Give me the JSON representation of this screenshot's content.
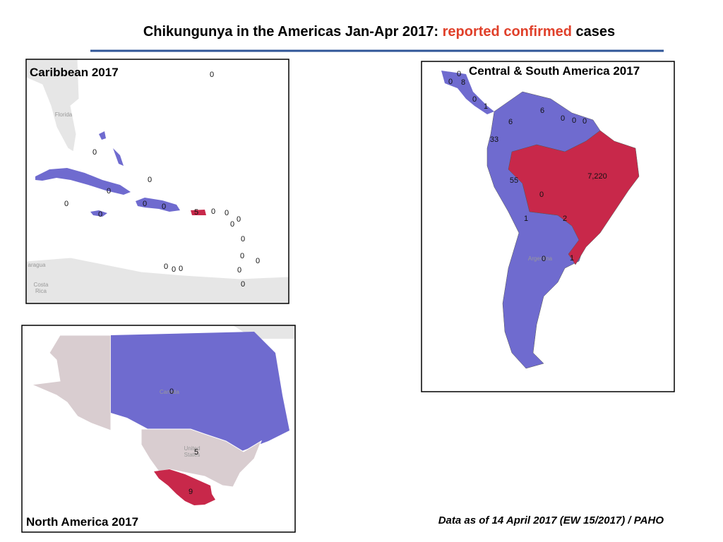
{
  "title": {
    "before": "Chikungunya in the Americas Jan-Apr 2017: ",
    "highlight": "reported confirmed",
    "after": " cases"
  },
  "maps": [
    {
      "title": "Caribbean 2017",
      "labels": [
        "0",
        "0",
        "0",
        "0",
        "0",
        "0",
        "0",
        "0",
        "5",
        "0",
        "0",
        "0",
        "0",
        "0",
        "0",
        "0",
        "0",
        "0",
        "0",
        "0",
        "0"
      ],
      "place_names": [
        "Florida",
        "aragua",
        "Costa",
        "Rica"
      ]
    },
    {
      "title": "Central & South America 2017",
      "labels": [
        "0",
        "0",
        "8",
        "0",
        "1",
        "6",
        "0",
        "0",
        "0",
        "6",
        "33",
        "7,220",
        "55",
        "0",
        "1",
        "2",
        "0",
        "1"
      ],
      "place_names": [
        "Argentina"
      ]
    },
    {
      "title": "North America 2017",
      "labels": [
        "0",
        "5",
        "9"
      ],
      "place_names": [
        "Canada",
        "United",
        "States"
      ]
    }
  ],
  "footnote": "Data as of 14 April 2017 (EW 15/2017) / PAHO"
}
